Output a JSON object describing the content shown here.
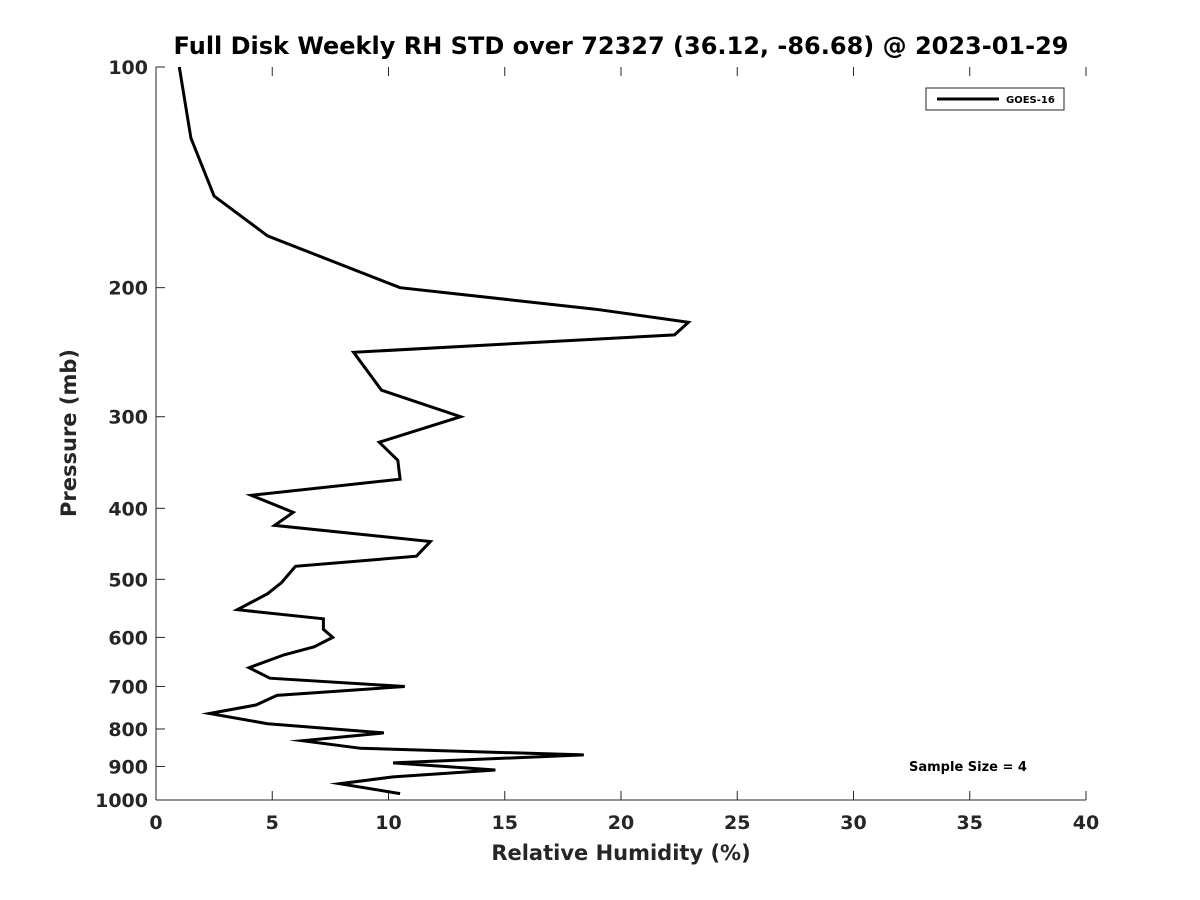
{
  "chart_data": {
    "type": "line",
    "title": "Full Disk Weekly RH STD over 72327 (36.12, -86.68) @ 2023-01-29",
    "xlabel": "Relative Humidity (%)",
    "ylabel": "Pressure (mb)",
    "xlim": [
      0,
      40
    ],
    "ylim": [
      1000,
      100
    ],
    "yscale": "log",
    "xticks": [
      0,
      5,
      10,
      15,
      20,
      25,
      30,
      35,
      40
    ],
    "yticks": [
      100,
      200,
      300,
      400,
      500,
      600,
      700,
      800,
      900,
      1000
    ],
    "grid": false,
    "legend_position": "top-right",
    "annotation": "Sample Size = 4",
    "series": [
      {
        "name": "GOES-16",
        "color": "#000000",
        "points": [
          [
            1.0,
            100
          ],
          [
            1.5,
            125
          ],
          [
            2.5,
            150
          ],
          [
            4.8,
            170
          ],
          [
            10.5,
            200
          ],
          [
            18.9,
            214
          ],
          [
            22.9,
            223
          ],
          [
            22.3,
            232
          ],
          [
            8.5,
            245
          ],
          [
            9.7,
            276
          ],
          [
            13.1,
            300
          ],
          [
            9.6,
            325
          ],
          [
            10.4,
            344
          ],
          [
            10.5,
            365
          ],
          [
            4.1,
            384
          ],
          [
            5.9,
            405
          ],
          [
            5.1,
            422
          ],
          [
            11.8,
            444
          ],
          [
            11.2,
            465
          ],
          [
            6.0,
            480
          ],
          [
            5.4,
            505
          ],
          [
            4.8,
            523
          ],
          [
            3.5,
            550
          ],
          [
            7.2,
            566
          ],
          [
            7.2,
            585
          ],
          [
            7.6,
            600
          ],
          [
            6.8,
            618
          ],
          [
            5.5,
            634
          ],
          [
            4.0,
            660
          ],
          [
            4.9,
            682
          ],
          [
            10.7,
            700
          ],
          [
            5.2,
            720
          ],
          [
            4.3,
            742
          ],
          [
            2.3,
            762
          ],
          [
            4.8,
            787
          ],
          [
            9.8,
            810
          ],
          [
            6.3,
            830
          ],
          [
            8.8,
            850
          ],
          [
            18.4,
            868
          ],
          [
            10.2,
            890
          ],
          [
            14.6,
            910
          ],
          [
            10.2,
            930
          ],
          [
            7.9,
            950
          ],
          [
            10.5,
            980
          ]
        ]
      }
    ]
  }
}
